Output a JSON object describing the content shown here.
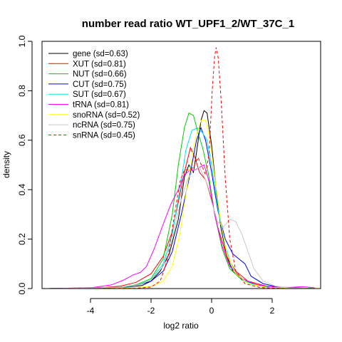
{
  "chart_data": {
    "type": "line",
    "title": "number read ratio WT_UPF1_2/WT_37C_1",
    "xlabel": "log2 ratio",
    "ylabel": "density",
    "xlim": [
      -5.6,
      3.6
    ],
    "ylim": [
      0,
      1.0
    ],
    "x_ticks": [
      -4,
      -2,
      0,
      2
    ],
    "y_ticks": [
      0.0,
      0.2,
      0.4,
      0.6,
      0.8,
      1.0
    ],
    "x_tick_labels": [
      "-4",
      "-2",
      "0",
      "2"
    ],
    "y_tick_labels": [
      "0.0",
      "0.2",
      "0.4",
      "0.6",
      "0.8",
      "1.0"
    ],
    "grid": false,
    "legend_position": "top-left",
    "series": [
      {
        "name": "gene (sd=0.63)",
        "color": "#000000",
        "dashed": false,
        "points": [
          [
            -5.4,
            0
          ],
          [
            -4.5,
            0.001
          ],
          [
            -3.5,
            0.003
          ],
          [
            -2.8,
            0.006
          ],
          [
            -2.3,
            0.012
          ],
          [
            -2,
            0.03
          ],
          [
            -1.7,
            0.07
          ],
          [
            -1.4,
            0.14
          ],
          [
            -1.1,
            0.28
          ],
          [
            -0.9,
            0.45
          ],
          [
            -0.75,
            0.5
          ],
          [
            -0.6,
            0.47
          ],
          [
            -0.5,
            0.55
          ],
          [
            -0.35,
            0.68
          ],
          [
            -0.25,
            0.72
          ],
          [
            -0.15,
            0.71
          ],
          [
            0,
            0.58
          ],
          [
            0.15,
            0.4
          ],
          [
            0.3,
            0.25
          ],
          [
            0.5,
            0.13
          ],
          [
            0.7,
            0.07
          ],
          [
            1,
            0.035
          ],
          [
            1.5,
            0.015
          ],
          [
            2,
            0.005
          ],
          [
            2.8,
            0.001
          ],
          [
            3.4,
            0
          ]
        ]
      },
      {
        "name": "XUT (sd=0.81)",
        "color": "#ff0000",
        "dashed": false,
        "points": [
          [
            -5.4,
            0
          ],
          [
            -4.5,
            0.002
          ],
          [
            -3.5,
            0.005
          ],
          [
            -3,
            0.01
          ],
          [
            -2.5,
            0.025
          ],
          [
            -2,
            0.06
          ],
          [
            -1.6,
            0.13
          ],
          [
            -1.3,
            0.23
          ],
          [
            -1.1,
            0.35
          ],
          [
            -0.9,
            0.47
          ],
          [
            -0.7,
            0.57
          ],
          [
            -0.55,
            0.53
          ],
          [
            -0.4,
            0.47
          ],
          [
            -0.2,
            0.44
          ],
          [
            0,
            0.36
          ],
          [
            0.2,
            0.25
          ],
          [
            0.5,
            0.13
          ],
          [
            0.8,
            0.07
          ],
          [
            1.2,
            0.03
          ],
          [
            1.8,
            0.01
          ],
          [
            2.5,
            0.003
          ],
          [
            3.4,
            0
          ]
        ]
      },
      {
        "name": "NUT (sd=0.66)",
        "color": "#00cc00",
        "dashed": false,
        "points": [
          [
            -5.4,
            0
          ],
          [
            -4,
            0.002
          ],
          [
            -3,
            0.006
          ],
          [
            -2.5,
            0.015
          ],
          [
            -2,
            0.04
          ],
          [
            -1.6,
            0.12
          ],
          [
            -1.3,
            0.3
          ],
          [
            -1.1,
            0.5
          ],
          [
            -0.9,
            0.65
          ],
          [
            -0.75,
            0.71
          ],
          [
            -0.6,
            0.7
          ],
          [
            -0.45,
            0.63
          ],
          [
            -0.3,
            0.57
          ],
          [
            -0.1,
            0.46
          ],
          [
            0.1,
            0.3
          ],
          [
            0.35,
            0.16
          ],
          [
            0.6,
            0.08
          ],
          [
            1,
            0.035
          ],
          [
            1.5,
            0.012
          ],
          [
            2.2,
            0.003
          ],
          [
            3.4,
            0
          ]
        ]
      },
      {
        "name": "CUT (sd=0.75)",
        "color": "#0000ff",
        "dashed": false,
        "points": [
          [
            -5.4,
            0
          ],
          [
            -4,
            0.002
          ],
          [
            -3,
            0.006
          ],
          [
            -2.4,
            0.015
          ],
          [
            -2,
            0.03
          ],
          [
            -1.6,
            0.07
          ],
          [
            -1.3,
            0.15
          ],
          [
            -1,
            0.3
          ],
          [
            -0.7,
            0.47
          ],
          [
            -0.5,
            0.6
          ],
          [
            -0.35,
            0.65
          ],
          [
            -0.2,
            0.6
          ],
          [
            0,
            0.47
          ],
          [
            0.2,
            0.32
          ],
          [
            0.45,
            0.2
          ],
          [
            0.7,
            0.14
          ],
          [
            0.9,
            0.12
          ],
          [
            1.1,
            0.1
          ],
          [
            1.3,
            0.05
          ],
          [
            1.7,
            0.02
          ],
          [
            2.2,
            0.006
          ],
          [
            3.4,
            0
          ]
        ]
      },
      {
        "name": "SUT (sd=0.67)",
        "color": "#00e5e5",
        "dashed": false,
        "points": [
          [
            -5.4,
            0
          ],
          [
            -4,
            0.002
          ],
          [
            -3,
            0.005
          ],
          [
            -2.5,
            0.012
          ],
          [
            -2,
            0.035
          ],
          [
            -1.6,
            0.1
          ],
          [
            -1.3,
            0.22
          ],
          [
            -1.05,
            0.4
          ],
          [
            -0.85,
            0.56
          ],
          [
            -0.65,
            0.64
          ],
          [
            -0.45,
            0.65
          ],
          [
            -0.3,
            0.63
          ],
          [
            -0.15,
            0.6
          ],
          [
            0,
            0.5
          ],
          [
            0.2,
            0.33
          ],
          [
            0.45,
            0.17
          ],
          [
            0.7,
            0.08
          ],
          [
            1,
            0.035
          ],
          [
            1.5,
            0.012
          ],
          [
            2.2,
            0.003
          ],
          [
            3.4,
            0
          ]
        ]
      },
      {
        "name": "tRNA (sd=0.81)",
        "color": "#ff00ff",
        "dashed": false,
        "points": [
          [
            -5.4,
            0
          ],
          [
            -4,
            0.003
          ],
          [
            -3.3,
            0.015
          ],
          [
            -2.9,
            0.035
          ],
          [
            -2.6,
            0.055
          ],
          [
            -2.35,
            0.065
          ],
          [
            -2.15,
            0.09
          ],
          [
            -1.9,
            0.16
          ],
          [
            -1.6,
            0.26
          ],
          [
            -1.35,
            0.34
          ],
          [
            -1.1,
            0.4
          ],
          [
            -0.9,
            0.46
          ],
          [
            -0.7,
            0.48
          ],
          [
            -0.55,
            0.48
          ],
          [
            -0.4,
            0.49
          ],
          [
            -0.25,
            0.5
          ],
          [
            -0.1,
            0.44
          ],
          [
            0.1,
            0.3
          ],
          [
            0.35,
            0.17
          ],
          [
            0.6,
            0.09
          ],
          [
            1,
            0.04
          ],
          [
            1.5,
            0.015
          ],
          [
            2,
            0.006
          ],
          [
            2.5,
            0.004
          ],
          [
            3,
            0.008
          ],
          [
            3.4,
            0.003
          ]
        ]
      },
      {
        "name": "snoRNA (sd=0.52)",
        "color": "#ffff00",
        "dashed": false,
        "points": [
          [
            -5.4,
            0
          ],
          [
            -3,
            0.001
          ],
          [
            -2,
            0.008
          ],
          [
            -1.6,
            0.03
          ],
          [
            -1.3,
            0.09
          ],
          [
            -1.05,
            0.22
          ],
          [
            -0.8,
            0.42
          ],
          [
            -0.55,
            0.6
          ],
          [
            -0.35,
            0.68
          ],
          [
            -0.2,
            0.68
          ],
          [
            -0.05,
            0.6
          ],
          [
            0.1,
            0.45
          ],
          [
            0.3,
            0.27
          ],
          [
            0.5,
            0.14
          ],
          [
            0.8,
            0.06
          ],
          [
            1.2,
            0.02
          ],
          [
            1.8,
            0.005
          ],
          [
            3.4,
            0
          ]
        ]
      },
      {
        "name": "ncRNA (sd=0.75)",
        "color": "#c8c8c8",
        "dashed": false,
        "points": [
          [
            -5.4,
            0
          ],
          [
            -4,
            0.002
          ],
          [
            -3,
            0.006
          ],
          [
            -2.4,
            0.015
          ],
          [
            -2,
            0.035
          ],
          [
            -1.6,
            0.09
          ],
          [
            -1.3,
            0.2
          ],
          [
            -1.05,
            0.34
          ],
          [
            -0.8,
            0.44
          ],
          [
            -0.6,
            0.48
          ],
          [
            -0.4,
            0.49
          ],
          [
            -0.2,
            0.44
          ],
          [
            0,
            0.35
          ],
          [
            0.2,
            0.27
          ],
          [
            0.4,
            0.25
          ],
          [
            0.6,
            0.28
          ],
          [
            0.8,
            0.27
          ],
          [
            1,
            0.22
          ],
          [
            1.2,
            0.15
          ],
          [
            1.4,
            0.08
          ],
          [
            1.7,
            0.03
          ],
          [
            2.1,
            0.01
          ],
          [
            2.6,
            0.002
          ],
          [
            3.4,
            0
          ]
        ]
      },
      {
        "name": "snRNA (sd=0.45)",
        "color": "#ff0000",
        "dashed": true,
        "points": [
          [
            -5.4,
            0
          ],
          [
            -2.5,
            0.001
          ],
          [
            -2,
            0.006
          ],
          [
            -1.7,
            0.03
          ],
          [
            -1.45,
            0.12
          ],
          [
            -1.25,
            0.28
          ],
          [
            -1.05,
            0.43
          ],
          [
            -0.9,
            0.48
          ],
          [
            -0.75,
            0.48
          ],
          [
            -0.6,
            0.49
          ],
          [
            -0.45,
            0.53
          ],
          [
            -0.3,
            0.49
          ],
          [
            -0.2,
            0.46
          ],
          [
            -0.08,
            0.55
          ],
          [
            0.02,
            0.8
          ],
          [
            0.1,
            0.94
          ],
          [
            0.15,
            0.975
          ],
          [
            0.22,
            0.93
          ],
          [
            0.32,
            0.75
          ],
          [
            0.45,
            0.45
          ],
          [
            0.6,
            0.2
          ],
          [
            0.8,
            0.07
          ],
          [
            1.1,
            0.02
          ],
          [
            1.6,
            0.004
          ],
          [
            2.5,
            0
          ],
          [
            3.4,
            0
          ]
        ]
      }
    ]
  }
}
